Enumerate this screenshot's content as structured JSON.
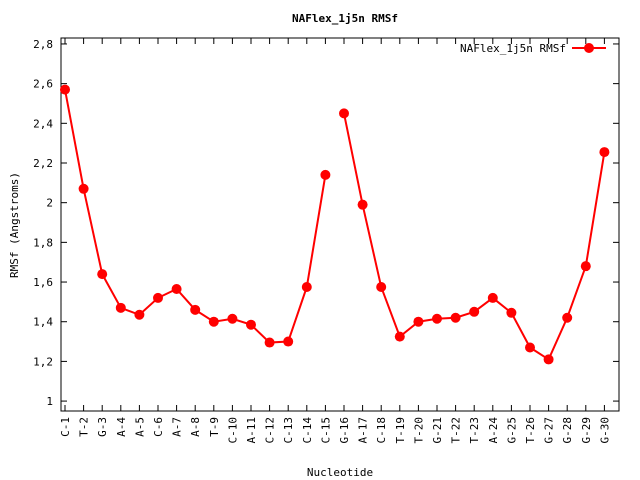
{
  "chart_data": {
    "type": "line",
    "title": "NAFlex_1j5n RMSf",
    "xlabel": "Nucleotide",
    "ylabel": "RMSf (Angstroms)",
    "ylim": [
      0.95,
      2.83
    ],
    "yticks": [
      "1",
      "1,2",
      "1,4",
      "1,6",
      "1,8",
      "2",
      "2,2",
      "2,4",
      "2,6",
      "2,8"
    ],
    "ytick_values": [
      1.0,
      1.2,
      1.4,
      1.6,
      1.8,
      2.0,
      2.2,
      2.4,
      2.6,
      2.8
    ],
    "legend_position": "top-right",
    "grid": false,
    "categories": [
      "C-1",
      "T-2",
      "G-3",
      "A-4",
      "A-5",
      "C-6",
      "A-7",
      "A-8",
      "T-9",
      "C-10",
      "A-11",
      "C-12",
      "C-13",
      "C-14",
      "C-15",
      "G-16",
      "A-17",
      "C-18",
      "T-19",
      "T-20",
      "G-21",
      "T-22",
      "T-23",
      "A-24",
      "G-25",
      "T-26",
      "G-27",
      "G-28",
      "G-29",
      "G-30"
    ],
    "series": [
      {
        "name": "NAFlex_1j5n RMSf",
        "color": "#ff0000",
        "segments": [
          [
            2.57,
            2.07,
            1.64,
            1.47,
            1.435,
            1.52,
            1.565,
            1.46,
            1.4,
            1.415,
            1.385,
            1.295,
            1.3,
            1.575,
            2.14
          ],
          [
            2.45,
            1.99,
            1.575,
            1.325,
            1.4,
            1.415,
            1.42,
            1.45,
            1.52,
            1.445,
            1.27,
            1.21,
            1.42,
            1.68,
            2.255
          ]
        ]
      }
    ]
  }
}
